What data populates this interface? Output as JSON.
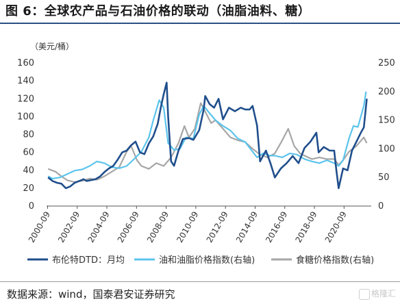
{
  "figure": {
    "title": "图 6：全球农产品与石油价格的联动（油脂油料、糖）",
    "source": "数据来源：wind，国泰君安证券研究",
    "watermark": "格隆汇"
  },
  "colors": {
    "brent": "#1f4e8c",
    "oils": "#5bc4ec",
    "sugar": "#a6a6a6",
    "title_rule": "#2a4f84"
  },
  "chart_data": {
    "type": "line",
    "unit_label": "（美元/桶）",
    "x_tick_labels": [
      "2000-09",
      "2002-09",
      "2004-09",
      "2006-09",
      "2008-09",
      "2010-09",
      "2012-09",
      "2014-09",
      "2016-09",
      "2018-09",
      "2020-09"
    ],
    "xlim": [
      2000.6,
      2022.5
    ],
    "ylim_left": [
      0,
      160
    ],
    "ylim_right": [
      0,
      250
    ],
    "y_left_ticks": [
      0,
      20,
      40,
      60,
      80,
      100,
      120,
      140,
      160
    ],
    "y_right_ticks": [
      0,
      50,
      100,
      150,
      200,
      250
    ],
    "legend_position": "bottom",
    "grid": false,
    "series": [
      {
        "name": "布伦特DTD：月均",
        "axis": "left",
        "color": "#1f4e8c",
        "x": [
          2000.7,
          2001.0,
          2001.3,
          2001.6,
          2001.9,
          2002.2,
          2002.5,
          2002.8,
          2003.1,
          2003.3,
          2003.6,
          2003.9,
          2004.2,
          2004.5,
          2004.8,
          2005.1,
          2005.4,
          2005.7,
          2006.0,
          2006.3,
          2006.6,
          2006.9,
          2007.2,
          2007.5,
          2007.8,
          2008.1,
          2008.3,
          2008.5,
          2008.7,
          2008.8,
          2009.0,
          2009.2,
          2009.5,
          2009.8,
          2010.2,
          2010.5,
          2010.9,
          2011.2,
          2011.3,
          2011.6,
          2011.9,
          2012.2,
          2012.5,
          2012.9,
          2013.3,
          2013.7,
          2014.0,
          2014.3,
          2014.5,
          2014.8,
          2015.0,
          2015.4,
          2015.7,
          2016.0,
          2016.4,
          2016.8,
          2017.2,
          2017.6,
          2018.0,
          2018.4,
          2018.8,
          2018.95,
          2019.3,
          2019.7,
          2020.0,
          2020.15,
          2020.3,
          2020.6,
          2020.9,
          2021.2,
          2021.5,
          2021.8,
          2022.0,
          2022.2
        ],
        "values": [
          32,
          28,
          26,
          25,
          20,
          22,
          26,
          28,
          30,
          28,
          29,
          30,
          33,
          38,
          42,
          45,
          52,
          60,
          62,
          68,
          72,
          60,
          58,
          70,
          78,
          92,
          110,
          125,
          138,
          100,
          50,
          45,
          62,
          75,
          76,
          74,
          85,
          108,
          123,
          114,
          110,
          120,
          97,
          110,
          106,
          110,
          108,
          108,
          112,
          90,
          50,
          62,
          48,
          32,
          42,
          48,
          56,
          48,
          65,
          72,
          82,
          60,
          66,
          62,
          62,
          40,
          20,
          42,
          40,
          62,
          72,
          82,
          88,
          120
        ]
      },
      {
        "name": "油和油脂价格指数(右轴)",
        "axis": "right",
        "color": "#5bc4ec",
        "x": [
          2000.7,
          2001.0,
          2001.5,
          2002.0,
          2002.5,
          2003.0,
          2003.5,
          2004.0,
          2004.5,
          2005.0,
          2005.5,
          2006.0,
          2006.5,
          2007.0,
          2007.5,
          2007.8,
          2008.2,
          2008.5,
          2008.8,
          2009.2,
          2009.6,
          2010.0,
          2010.5,
          2010.9,
          2011.2,
          2011.6,
          2012.0,
          2012.5,
          2013.0,
          2013.5,
          2014.0,
          2014.5,
          2014.8,
          2015.2,
          2015.7,
          2016.0,
          2016.5,
          2017.0,
          2017.5,
          2018.0,
          2018.5,
          2019.0,
          2019.5,
          2020.0,
          2020.3,
          2020.6,
          2021.0,
          2021.3,
          2021.6,
          2022.0,
          2022.15
        ],
        "values": [
          52,
          48,
          50,
          56,
          62,
          64,
          70,
          78,
          75,
          68,
          66,
          70,
          82,
          95,
          120,
          150,
          185,
          172,
          110,
          98,
          100,
          120,
          118,
          160,
          175,
          162,
          150,
          140,
          132,
          118,
          112,
          95,
          85,
          92,
          88,
          88,
          85,
          92,
          90,
          82,
          78,
          75,
          80,
          75,
          70,
          80,
          118,
          140,
          138,
          175,
          200
        ]
      },
      {
        "name": "食糖价格指数(右轴)",
        "axis": "right",
        "color": "#a6a6a6",
        "x": [
          2000.7,
          2001.2,
          2001.6,
          2002.0,
          2002.5,
          2003.0,
          2003.5,
          2004.0,
          2004.5,
          2005.0,
          2005.5,
          2006.0,
          2006.3,
          2006.7,
          2007.0,
          2007.5,
          2008.0,
          2008.5,
          2009.0,
          2009.5,
          2009.9,
          2010.2,
          2010.6,
          2011.0,
          2011.3,
          2011.7,
          2012.0,
          2012.5,
          2013.0,
          2013.5,
          2014.0,
          2014.5,
          2015.0,
          2015.5,
          2016.0,
          2016.5,
          2016.9,
          2017.3,
          2017.7,
          2018.0,
          2018.5,
          2019.0,
          2019.5,
          2020.0,
          2020.3,
          2020.6,
          2021.0,
          2021.5,
          2022.0,
          2022.2
        ],
        "values": [
          65,
          60,
          52,
          45,
          42,
          44,
          48,
          46,
          52,
          60,
          68,
          95,
          105,
          80,
          70,
          65,
          75,
          70,
          85,
          110,
          140,
          120,
          135,
          180,
          165,
          145,
          150,
          135,
          120,
          115,
          112,
          100,
          90,
          85,
          92,
          115,
          135,
          105,
          92,
          88,
          82,
          85,
          82,
          82,
          72,
          80,
          95,
          105,
          120,
          110
        ]
      }
    ]
  }
}
